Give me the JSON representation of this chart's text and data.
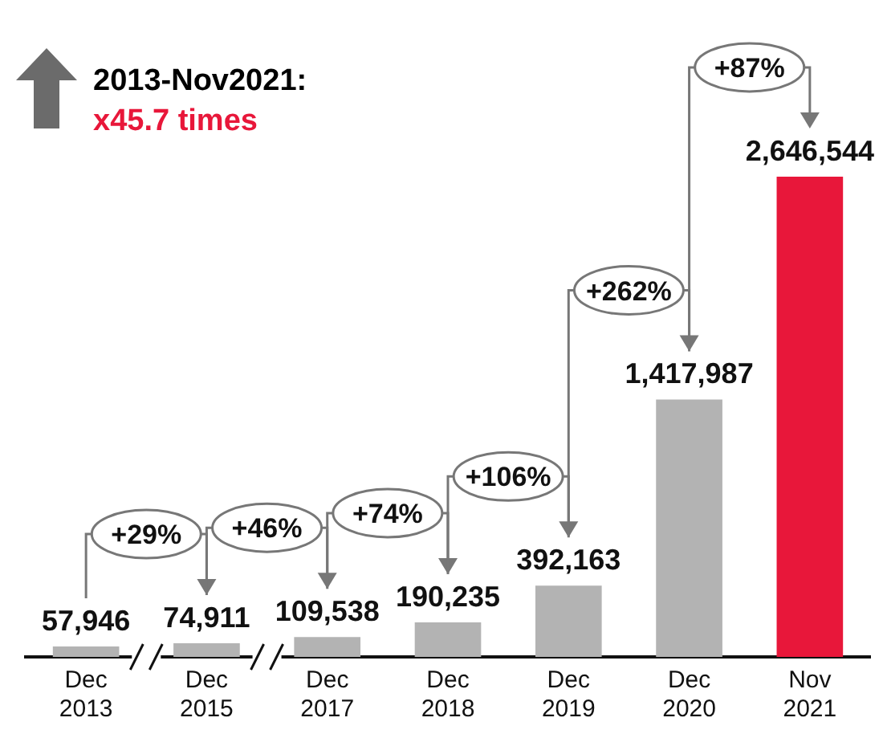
{
  "chart_data": {
    "type": "bar",
    "title": "2013-Nov2021:",
    "subtitle": "x45.7 times",
    "categories": [
      "Dec\n2013",
      "Dec\n2015",
      "Dec\n2017",
      "Dec\n2018",
      "Dec\n2019",
      "Dec\n2020",
      "Nov\n2021"
    ],
    "values": [
      57946,
      74911,
      109538,
      190235,
      392163,
      1417987,
      2646544
    ],
    "colors": [
      "#b3b3b3",
      "#b3b3b3",
      "#b3b3b3",
      "#b3b3b3",
      "#b3b3b3",
      "#b3b3b3",
      "#e8173a"
    ],
    "value_labels": [
      "57,946",
      "74,911",
      "109,538",
      "190,235",
      "392,163",
      "1,417,987",
      "2,646,544"
    ],
    "relative": false,
    "grid": false,
    "legend": false,
    "annotations": [
      "+29%",
      "+46%",
      "+74%",
      "+106%",
      "+262%",
      "+87%"
    ]
  }
}
